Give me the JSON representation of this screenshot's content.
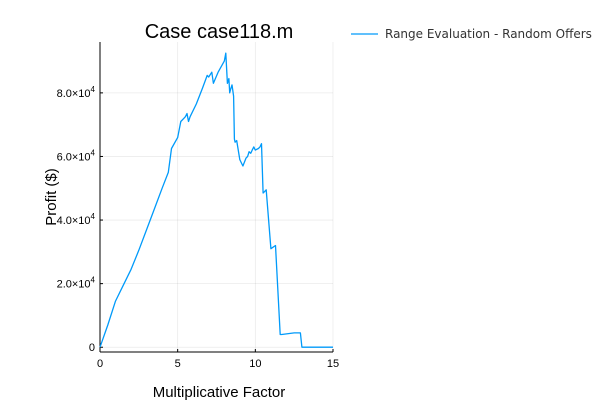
{
  "chart_data": {
    "type": "line",
    "title": "Case case118.m",
    "xlabel": "Multiplicative Factor",
    "ylabel": "Profit ($)",
    "xlim": [
      0,
      15
    ],
    "ylim": [
      -1500,
      96000
    ],
    "xticks": [
      0,
      5,
      10,
      15
    ],
    "xtick_labels": [
      "0",
      "5",
      "10",
      "15"
    ],
    "yticks": [
      0,
      20000,
      40000,
      60000,
      80000
    ],
    "ytick_labels": [
      {
        "mantissa": "0",
        "exp": ""
      },
      {
        "mantissa": "2.0×10",
        "exp": "4"
      },
      {
        "mantissa": "4.0×10",
        "exp": "4"
      },
      {
        "mantissa": "6.0×10",
        "exp": "4"
      },
      {
        "mantissa": "8.0×10",
        "exp": "4"
      }
    ],
    "grid": true,
    "legend": {
      "position": "outside-top-right"
    },
    "series": [
      {
        "name": "Range Evaluation - Random Offers",
        "color": "#009AFA",
        "x": [
          0,
          0.5,
          1.0,
          1.5,
          2.0,
          2.5,
          3.0,
          3.5,
          4.0,
          4.4,
          4.6,
          5.0,
          5.2,
          5.4,
          5.5,
          5.6,
          5.7,
          5.8,
          6.2,
          6.6,
          6.9,
          7.0,
          7.2,
          7.3,
          7.6,
          8.0,
          8.1,
          8.2,
          8.3,
          8.35,
          8.4,
          8.5,
          8.6,
          8.65,
          8.7,
          8.8,
          9.0,
          9.2,
          9.4,
          9.5,
          9.6,
          9.7,
          9.8,
          9.9,
          10.0,
          10.2,
          10.3,
          10.4,
          10.5,
          10.6,
          10.7,
          11.0,
          11.3,
          11.6,
          11.7,
          12.5,
          12.9,
          13.0,
          15.0
        ],
        "y": [
          0,
          7000,
          14500,
          19500,
          24500,
          30500,
          37000,
          43500,
          50000,
          55000,
          62500,
          66000,
          71000,
          72000,
          72500,
          73500,
          71000,
          72500,
          76500,
          81500,
          85500,
          85000,
          86500,
          83000,
          86500,
          90000,
          92500,
          83000,
          84500,
          80000,
          81000,
          82500,
          79000,
          65500,
          64500,
          65000,
          59000,
          57000,
          59500,
          60000,
          61500,
          61000,
          62000,
          63000,
          62000,
          62500,
          63000,
          64000,
          48500,
          49000,
          49500,
          31000,
          32000,
          4000,
          4000,
          4500,
          4500,
          0,
          0
        ]
      }
    ]
  }
}
